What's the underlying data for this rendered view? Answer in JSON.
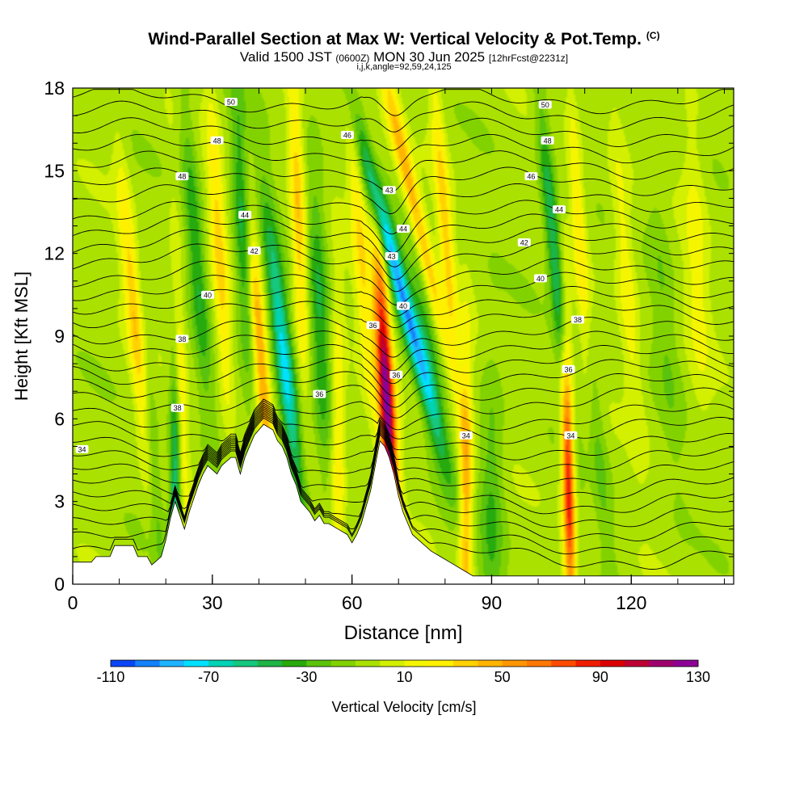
{
  "title": {
    "main": "Wind-Parallel Section at Max W: Vertical Velocity & Pot.Temp.",
    "main_tag": "(C)",
    "valid_prefix": "Valid 1500 JST",
    "valid_utc": "(0600Z)",
    "valid_date": "MON 30 Jun 2025",
    "forecast_tag": "[12hrFcst@2231z]",
    "indices": "i,j,k,angle=92,59,24,125"
  },
  "chart_data": {
    "type": "heatmap",
    "xlabel": "Distance [nm]",
    "ylabel": "Height [Kft MSL]",
    "xlim": [
      0,
      142
    ],
    "ylim": [
      0,
      18
    ],
    "x_ticks": [
      0,
      30,
      60,
      90,
      120
    ],
    "y_ticks": [
      0,
      3,
      6,
      9,
      12,
      15,
      18
    ],
    "grid": false,
    "colorbar": {
      "label": "Vertical Velocity [cm/s]",
      "min": -110,
      "max": 130,
      "step": 10,
      "tick_labels": [
        "-110",
        "-70",
        "-30",
        "10",
        "50",
        "90",
        "130"
      ],
      "colors": [
        "#0000f0",
        "#0a46f5",
        "#1480fa",
        "#1eb4ff",
        "#00e1ff",
        "#00d2b4",
        "#14c87d",
        "#1eb446",
        "#28aa0a",
        "#5ac30a",
        "#82d200",
        "#aae100",
        "#d2f000",
        "#f5f500",
        "#fff000",
        "#ffd200",
        "#ffb400",
        "#ff9600",
        "#ff7800",
        "#ff4b00",
        "#f01e00",
        "#dc0000",
        "#be0032",
        "#a0006e",
        "#8c0096",
        "#6e00be"
      ]
    },
    "background_w": 5,
    "features": [
      {
        "x": 13.5,
        "z": 9.5,
        "halfwidth": 1.8,
        "peak_w": 45,
        "tilt": -0.25
      },
      {
        "x": 17,
        "z": 5,
        "halfwidth": 1.5,
        "peak_w": -25,
        "tilt": -0.2
      },
      {
        "x": 23,
        "z": 8,
        "halfwidth": 1.3,
        "peak_w": 30,
        "tilt": -0.1
      },
      {
        "x": 22,
        "z": 3,
        "halfwidth": 1.2,
        "peak_w": -55,
        "tilt": 0
      },
      {
        "x": 26.5,
        "z": 12,
        "halfwidth": 1.8,
        "peak_w": -35,
        "tilt": -0.2
      },
      {
        "x": 31.5,
        "z": 12,
        "halfwidth": 1.6,
        "peak_w": 40,
        "tilt": -0.15
      },
      {
        "x": 36.5,
        "z": 13,
        "halfwidth": 1.8,
        "peak_w": -40,
        "tilt": -0.1
      },
      {
        "x": 40.5,
        "z": 8,
        "halfwidth": 1.5,
        "peak_w": 55,
        "tilt": -0.2
      },
      {
        "x": 45.5,
        "z": 8,
        "halfwidth": 2.0,
        "peak_w": -70,
        "tilt": -0.3
      },
      {
        "x": 48.5,
        "z": 13,
        "halfwidth": 1.5,
        "peak_w": 45,
        "tilt": -0.1
      },
      {
        "x": 53,
        "z": 10,
        "halfwidth": 2.0,
        "peak_w": -35,
        "tilt": -0.1
      },
      {
        "x": 57,
        "z": 5,
        "halfwidth": 1.5,
        "peak_w": 30,
        "tilt": 0
      },
      {
        "x": 62,
        "z": 12,
        "halfwidth": 1.8,
        "peak_w": 35,
        "tilt": -0.2
      },
      {
        "x": 67.5,
        "z": 6.5,
        "halfwidth": 1.7,
        "peak_w": 130,
        "tilt": -0.15
      },
      {
        "x": 70,
        "z": 11,
        "halfwidth": 2.0,
        "peak_w": -85,
        "tilt": -0.7
      },
      {
        "x": 73,
        "z": 14,
        "halfwidth": 1.8,
        "peak_w": 60,
        "tilt": -0.6
      },
      {
        "x": 76,
        "z": 9,
        "halfwidth": 2.5,
        "peak_w": -25,
        "tilt": -0.3
      },
      {
        "x": 80,
        "z": 13,
        "halfwidth": 1.5,
        "peak_w": 40,
        "tilt": -0.2
      },
      {
        "x": 84.5,
        "z": 3,
        "halfwidth": 1.4,
        "peak_w": 55,
        "tilt": 0
      },
      {
        "x": 90,
        "z": 2.5,
        "halfwidth": 2.5,
        "peak_w": -25,
        "tilt": 0
      },
      {
        "x": 103.5,
        "z": 12,
        "halfwidth": 1.6,
        "peak_w": -50,
        "tilt": -0.25
      },
      {
        "x": 106.5,
        "z": 4,
        "halfwidth": 1.3,
        "peak_w": 95,
        "tilt": -0.05
      },
      {
        "x": 109,
        "z": 12,
        "halfwidth": 1.5,
        "peak_w": 35,
        "tilt": -0.15
      },
      {
        "x": 112,
        "z": 6,
        "halfwidth": 2.0,
        "peak_w": -20,
        "tilt": -0.3
      },
      {
        "x": 119,
        "z": 11,
        "halfwidth": 2.0,
        "peak_w": 25,
        "tilt": -0.2
      },
      {
        "x": 127,
        "z": 10,
        "halfwidth": 2.5,
        "peak_w": -15,
        "tilt": -0.2
      },
      {
        "x": 134,
        "z": 12,
        "halfwidth": 2.5,
        "peak_w": 20,
        "tilt": -0.1
      }
    ],
    "terrain": {
      "x": [
        0,
        4,
        5,
        8,
        9,
        13,
        14,
        16,
        17,
        19,
        20,
        21,
        22,
        23,
        24,
        25,
        27,
        28,
        29,
        31,
        32,
        34,
        35,
        36,
        37,
        38,
        39,
        40,
        41,
        43,
        44,
        45,
        46,
        47,
        48,
        49,
        51,
        52,
        53,
        54,
        55,
        57,
        59,
        60,
        61,
        62,
        63,
        64,
        65,
        66,
        67,
        68,
        69,
        70,
        71,
        72,
        73,
        75,
        77,
        79,
        81,
        83,
        85,
        86,
        87,
        88,
        90,
        95,
        100,
        105,
        110,
        115,
        120,
        125,
        130,
        135,
        142
      ],
      "z": [
        0.8,
        0.8,
        1.0,
        1.0,
        1.4,
        1.4,
        1.0,
        1.0,
        0.7,
        1.0,
        1.6,
        2.4,
        3.0,
        2.5,
        2.0,
        2.6,
        3.6,
        4.0,
        4.3,
        4.0,
        4.3,
        4.6,
        4.6,
        4.0,
        4.6,
        5.0,
        5.4,
        5.6,
        5.8,
        5.6,
        5.2,
        5.0,
        4.6,
        4.0,
        3.6,
        3.0,
        2.6,
        2.3,
        2.5,
        2.2,
        2.2,
        2.0,
        1.8,
        1.5,
        1.8,
        2.2,
        2.8,
        3.4,
        4.3,
        5.2,
        5.0,
        4.6,
        4.0,
        3.2,
        2.6,
        2.2,
        1.8,
        1.5,
        1.2,
        1.0,
        0.8,
        0.6,
        0.4,
        0.3,
        0.3,
        0.3,
        0.3,
        0.3,
        0.3,
        0.3,
        0.3,
        0.3,
        0.3,
        0.3,
        0.3,
        0.3,
        0.3
      ]
    },
    "isentrope_heights": [
      1.0,
      1.5,
      2.0,
      2.5,
      3.0,
      3.5,
      4.0,
      4.5,
      5.0,
      5.6,
      6.1,
      6.7,
      7.2,
      7.7,
      8.2,
      8.7,
      9.2,
      9.8,
      10.3,
      10.8,
      11.3,
      11.9,
      12.4,
      12.9,
      13.4,
      14.0,
      14.6,
      15.2,
      15.8,
      16.4,
      17.0,
      17.6
    ],
    "isentrope_labels": [
      {
        "text": "50",
        "x": 34,
        "z": 17.5
      },
      {
        "text": "48",
        "x": 31,
        "z": 16.1
      },
      {
        "text": "48",
        "x": 23.5,
        "z": 14.8
      },
      {
        "text": "44",
        "x": 37,
        "z": 13.4
      },
      {
        "text": "42",
        "x": 39,
        "z": 12.1
      },
      {
        "text": "40",
        "x": 29,
        "z": 10.5
      },
      {
        "text": "38",
        "x": 23.5,
        "z": 8.9
      },
      {
        "text": "38",
        "x": 22.5,
        "z": 6.4
      },
      {
        "text": "34",
        "x": 2,
        "z": 4.9
      },
      {
        "text": "46",
        "x": 59,
        "z": 16.3
      },
      {
        "text": "43",
        "x": 68,
        "z": 14.3
      },
      {
        "text": "44",
        "x": 71,
        "z": 12.9
      },
      {
        "text": "43",
        "x": 68.5,
        "z": 11.9
      },
      {
        "text": "40",
        "x": 71,
        "z": 10.1
      },
      {
        "text": "36",
        "x": 64.5,
        "z": 9.4
      },
      {
        "text": "36",
        "x": 69.5,
        "z": 7.6
      },
      {
        "text": "36",
        "x": 53,
        "z": 6.9
      },
      {
        "text": "34",
        "x": 84.5,
        "z": 5.4
      },
      {
        "text": "34",
        "x": 107,
        "z": 5.4
      },
      {
        "text": "50",
        "x": 101.5,
        "z": 17.4
      },
      {
        "text": "48",
        "x": 102,
        "z": 16.1
      },
      {
        "text": "46",
        "x": 98.5,
        "z": 14.8
      },
      {
        "text": "44",
        "x": 104.5,
        "z": 13.6
      },
      {
        "text": "42",
        "x": 97,
        "z": 12.4
      },
      {
        "text": "40",
        "x": 100.5,
        "z": 11.1
      },
      {
        "text": "38",
        "x": 108.5,
        "z": 9.6
      },
      {
        "text": "36",
        "x": 106.5,
        "z": 7.8
      }
    ]
  }
}
